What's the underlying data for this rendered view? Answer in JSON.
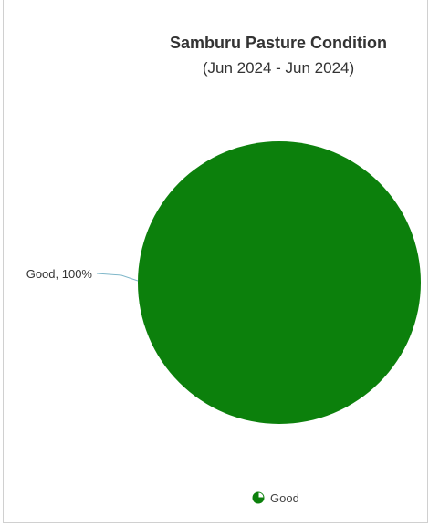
{
  "chart_data": {
    "type": "pie",
    "title": "Samburu Pasture Condition",
    "subtitle": "(Jun 2024 - Jun 2024)",
    "slices": [
      {
        "label": "Good",
        "value": 100,
        "color": "#0c800c",
        "data_label": "Good, 100%"
      }
    ],
    "legend": {
      "placement": "bottom-center",
      "items": [
        {
          "label": "Good",
          "color": "#0c800c",
          "icon": "pie-icon"
        }
      ]
    }
  }
}
